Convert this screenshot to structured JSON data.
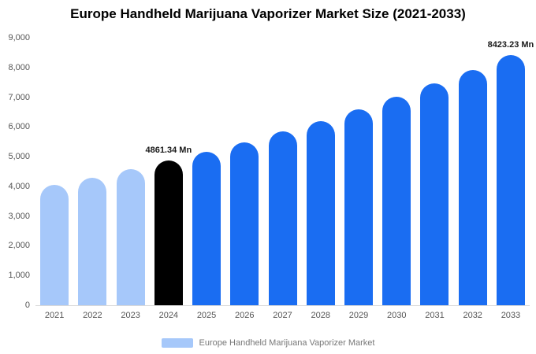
{
  "title": "Europe Handheld Marijuana Vaporizer Market Size (2021-2033)",
  "legend": {
    "label": "Europe Handheld Marijuana Vaporizer Market",
    "swatch_color": "#a6c8fa"
  },
  "colors": {
    "historical_bar": "#a6c8fa",
    "base_year_bar": "#000000",
    "forecast_bar": "#1a6df2",
    "axis_text": "#555555",
    "title_text": "#000000"
  },
  "chart_data": {
    "type": "bar",
    "title": "Europe Handheld Marijuana Vaporizer Market Size (2021-2033)",
    "xlabel": "",
    "ylabel": "",
    "categories": [
      "2021",
      "2022",
      "2023",
      "2024",
      "2025",
      "2026",
      "2027",
      "2028",
      "2029",
      "2030",
      "2031",
      "2032",
      "2033"
    ],
    "values": [
      4046,
      4301,
      4573,
      4861.34,
      5167,
      5493,
      5839,
      6207,
      6598,
      7014,
      7456,
      7926,
      8423.23
    ],
    "unit": "Mn",
    "value_labels": [
      {
        "category": "2024",
        "text": "4861.34 Mn"
      },
      {
        "category": "2033",
        "text": "8423.23 Mn"
      }
    ],
    "bar_colors": [
      "#a6c8fa",
      "#a6c8fa",
      "#a6c8fa",
      "#000000",
      "#1a6df2",
      "#1a6df2",
      "#1a6df2",
      "#1a6df2",
      "#1a6df2",
      "#1a6df2",
      "#1a6df2",
      "#1a6df2",
      "#1a6df2"
    ],
    "ylim": [
      0,
      9000
    ],
    "y_tick_step": 1000,
    "y_tick_labels": [
      "0",
      "1,000",
      "2,000",
      "3,000",
      "4,000",
      "5,000",
      "6,000",
      "7,000",
      "8,000",
      "9,000"
    ],
    "grid": false,
    "legend_position": "bottom",
    "legend_entries": [
      "Europe Handheld Marijuana Vaporizer Market"
    ]
  }
}
